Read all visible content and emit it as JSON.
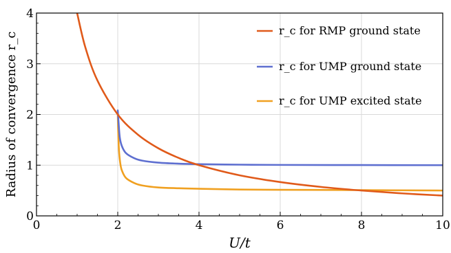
{
  "chart_data": {
    "type": "line",
    "xlabel": "U/t",
    "ylabel": "Radius of convergence r_c",
    "xlim": [
      0,
      10
    ],
    "ylim": [
      0,
      4
    ],
    "x_ticks": [
      "0",
      "2",
      "4",
      "6",
      "8",
      "10"
    ],
    "y_ticks": [
      "0",
      "1",
      "2",
      "3",
      "4"
    ],
    "grid": true,
    "legend_position": "top-right",
    "series": [
      {
        "name": "r_c for RMP ground state",
        "color": "#e05a1a",
        "x": [
          1.0,
          1.2,
          1.5,
          2.0,
          2.5,
          3.0,
          3.5,
          4.0,
          5.0,
          6.0,
          7.0,
          8.0,
          9.0,
          10.0
        ],
        "y": [
          4.0,
          3.33,
          2.67,
          2.0,
          1.6,
          1.333,
          1.143,
          1.0,
          0.8,
          0.667,
          0.571,
          0.5,
          0.444,
          0.4
        ]
      },
      {
        "name": "r_c for UMP ground state",
        "color": "#5e6fd0",
        "x": [
          2.0,
          2.02,
          2.05,
          2.1,
          2.2,
          2.4,
          2.6,
          3.0,
          3.5,
          4.0,
          5.0,
          6.0,
          8.0,
          10.0
        ],
        "y": [
          2.08,
          1.85,
          1.55,
          1.38,
          1.24,
          1.14,
          1.09,
          1.05,
          1.03,
          1.02,
          1.01,
          1.005,
          1.002,
          1.0
        ]
      },
      {
        "name": "r_c for UMP excited state",
        "color": "#f0a020",
        "x": [
          2.0,
          2.01,
          2.03,
          2.06,
          2.1,
          2.2,
          2.4,
          2.6,
          3.0,
          3.5,
          4.0,
          5.0,
          6.0,
          8.0,
          10.0
        ],
        "y": [
          2.04,
          1.7,
          1.3,
          1.05,
          0.9,
          0.75,
          0.65,
          0.6,
          0.56,
          0.545,
          0.535,
          0.52,
          0.515,
          0.508,
          0.5
        ]
      }
    ]
  }
}
